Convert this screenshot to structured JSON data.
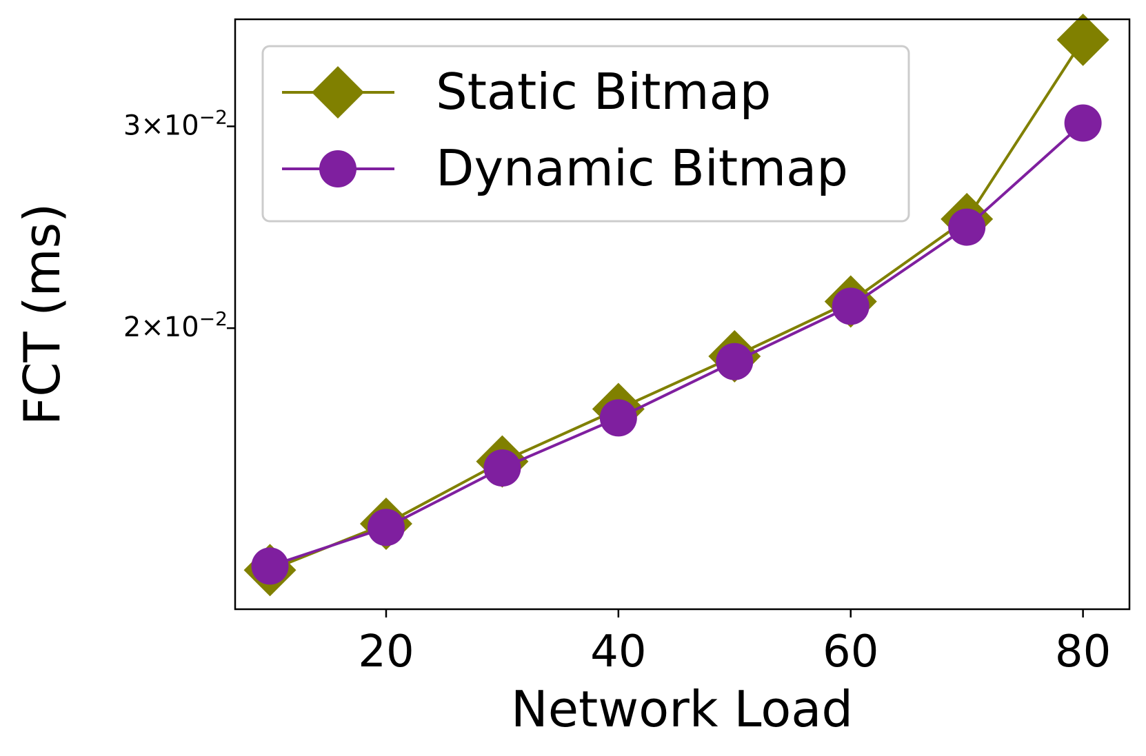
{
  "chart_data": {
    "type": "line",
    "xlabel": "Network Load",
    "ylabel": "FCT (ms)",
    "xlim": [
      7,
      84
    ],
    "ylim": [
      0.01137,
      0.0372
    ],
    "y_scale": "log",
    "x_ticks": [
      20,
      40,
      60,
      80
    ],
    "x_tick_labels": [
      "20",
      "40",
      "60",
      "80"
    ],
    "y_ticks": [
      0.02,
      0.03
    ],
    "y_tick_labels": [
      {
        "mantissa": "2",
        "times": "×",
        "base": "10",
        "exponent": "−2"
      },
      {
        "mantissa": "3",
        "times": "×",
        "base": "10",
        "exponent": "−2"
      }
    ],
    "x": [
      10,
      20,
      30,
      40,
      50,
      60,
      70,
      80
    ],
    "series": [
      {
        "name": "Static Bitmap",
        "marker": "diamond",
        "color": "#808000",
        "values": [
          0.0123,
          0.0135,
          0.0153,
          0.017,
          0.0189,
          0.0211,
          0.0249,
          0.0357
        ]
      },
      {
        "name": "Dynamic Bitmap",
        "marker": "circle",
        "color": "#7f1f9f",
        "values": [
          0.0124,
          0.0134,
          0.0151,
          0.0167,
          0.0187,
          0.0209,
          0.0245,
          0.0302
        ]
      }
    ],
    "legend": {
      "position": "top-left"
    },
    "grid": false
  }
}
